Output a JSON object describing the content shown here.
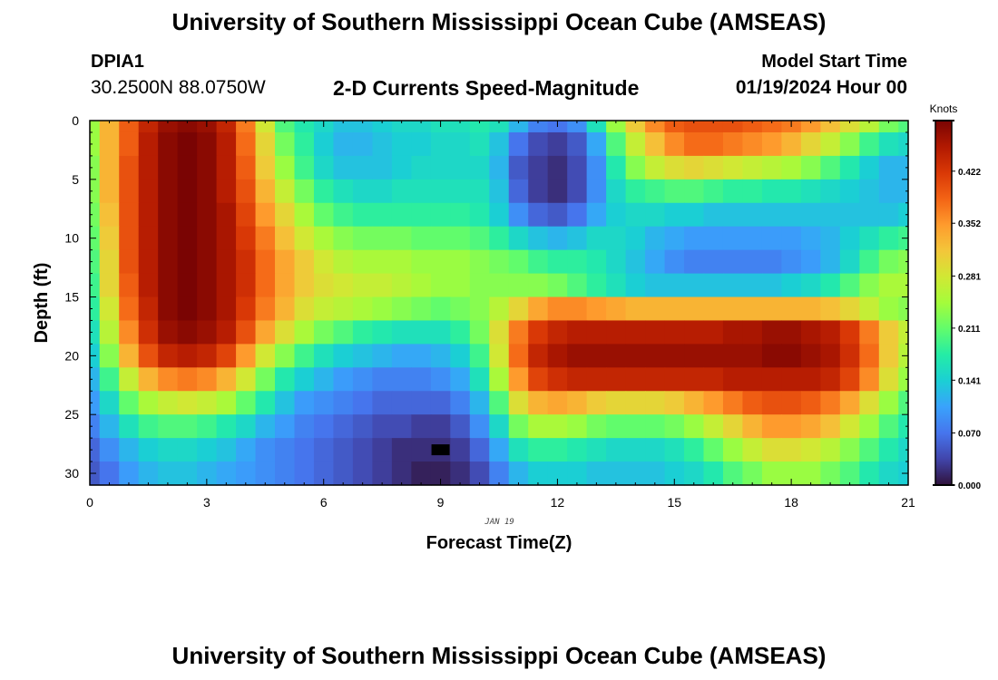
{
  "header": {
    "title": "University of Southern Mississippi Ocean Cube (AMSEAS)",
    "station": "DPIA1",
    "coords": "30.2500N  88.0750W",
    "subtitle": "2-D Currents Speed-Magnitude",
    "start_label": "Model Start Time",
    "start_value": "01/19/2024 Hour 00"
  },
  "footer": {
    "title": "University of Southern Mississippi Ocean Cube (AMSEAS)"
  },
  "chart_data": {
    "type": "heatmap",
    "title": "2-D Currents Speed-Magnitude",
    "xlabel": "Forecast Time(Z)",
    "ylabel": "Depth (ft)",
    "date_label": "JAN 19",
    "xlim": [
      0,
      21
    ],
    "ylim": [
      31,
      0
    ],
    "x_ticks": [
      0,
      3,
      6,
      9,
      12,
      15,
      18,
      21
    ],
    "y_ticks": [
      0,
      5,
      10,
      15,
      20,
      25,
      30
    ],
    "colorbar": {
      "unit": "Knots",
      "range": [
        0,
        0.49
      ],
      "ticks": [
        "0.000",
        "0.070",
        "0.141",
        "0.211",
        "0.281",
        "0.352",
        "0.422"
      ],
      "tick_values": [
        0,
        0.07,
        0.141,
        0.211,
        0.281,
        0.352,
        0.422
      ],
      "colormap": [
        "#30123b",
        "#4145ab",
        "#4675ed",
        "#39a2fc",
        "#1bcfd4",
        "#24eca6",
        "#61fc6c",
        "#a4fc3b",
        "#d1e834",
        "#f3c63a",
        "#fe9b2d",
        "#f36315",
        "#d93806",
        "#b11901",
        "#7a0403"
      ]
    },
    "time_hours": [
      0,
      0.5,
      1,
      1.5,
      2,
      2.5,
      3,
      3.5,
      4,
      4.5,
      5,
      5.5,
      6,
      6.5,
      7,
      7.5,
      8,
      8.5,
      9,
      9.5,
      10,
      10.5,
      11,
      11.5,
      12,
      12.5,
      13,
      13.5,
      14,
      14.5,
      15,
      15.5,
      16,
      16.5,
      17,
      17.5,
      18,
      18.5,
      19,
      19.5,
      20,
      20.5,
      21
    ],
    "depth_ft": [
      0,
      2,
      4,
      6,
      8,
      10,
      12,
      14,
      16,
      18,
      20,
      22,
      24,
      26,
      28,
      30
    ],
    "speed_knots": [
      [
        0.24,
        0.33,
        0.39,
        0.44,
        0.47,
        0.48,
        0.47,
        0.44,
        0.37,
        0.28,
        0.2,
        0.17,
        0.15,
        0.13,
        0.13,
        0.14,
        0.15,
        0.15,
        0.16,
        0.16,
        0.17,
        0.16,
        0.12,
        0.08,
        0.07,
        0.09,
        0.16,
        0.24,
        0.31,
        0.36,
        0.39,
        0.4,
        0.4,
        0.4,
        0.39,
        0.38,
        0.37,
        0.35,
        0.32,
        0.29,
        0.26,
        0.22,
        0.2
      ],
      [
        0.24,
        0.33,
        0.39,
        0.45,
        0.48,
        0.49,
        0.48,
        0.45,
        0.38,
        0.3,
        0.22,
        0.18,
        0.14,
        0.12,
        0.12,
        0.13,
        0.14,
        0.14,
        0.15,
        0.15,
        0.16,
        0.13,
        0.07,
        0.04,
        0.03,
        0.05,
        0.11,
        0.2,
        0.27,
        0.32,
        0.36,
        0.38,
        0.38,
        0.37,
        0.36,
        0.35,
        0.33,
        0.3,
        0.27,
        0.23,
        0.19,
        0.16,
        0.15
      ],
      [
        0.23,
        0.33,
        0.4,
        0.45,
        0.48,
        0.49,
        0.48,
        0.45,
        0.39,
        0.31,
        0.24,
        0.19,
        0.15,
        0.13,
        0.13,
        0.13,
        0.14,
        0.15,
        0.15,
        0.15,
        0.15,
        0.12,
        0.05,
        0.03,
        0.02,
        0.04,
        0.09,
        0.17,
        0.23,
        0.27,
        0.29,
        0.3,
        0.29,
        0.28,
        0.27,
        0.26,
        0.25,
        0.23,
        0.2,
        0.17,
        0.14,
        0.12,
        0.12
      ],
      [
        0.23,
        0.33,
        0.4,
        0.45,
        0.48,
        0.49,
        0.48,
        0.45,
        0.4,
        0.33,
        0.27,
        0.22,
        0.18,
        0.16,
        0.15,
        0.15,
        0.16,
        0.16,
        0.16,
        0.16,
        0.16,
        0.13,
        0.06,
        0.03,
        0.02,
        0.04,
        0.09,
        0.15,
        0.18,
        0.19,
        0.2,
        0.2,
        0.19,
        0.18,
        0.18,
        0.17,
        0.17,
        0.16,
        0.15,
        0.14,
        0.13,
        0.12,
        0.12
      ],
      [
        0.22,
        0.32,
        0.4,
        0.45,
        0.48,
        0.49,
        0.48,
        0.46,
        0.41,
        0.35,
        0.3,
        0.25,
        0.21,
        0.19,
        0.18,
        0.18,
        0.18,
        0.18,
        0.18,
        0.18,
        0.17,
        0.14,
        0.09,
        0.06,
        0.05,
        0.07,
        0.11,
        0.14,
        0.15,
        0.15,
        0.14,
        0.14,
        0.13,
        0.13,
        0.13,
        0.13,
        0.13,
        0.13,
        0.13,
        0.13,
        0.13,
        0.13,
        0.14
      ],
      [
        0.21,
        0.31,
        0.4,
        0.45,
        0.48,
        0.49,
        0.48,
        0.46,
        0.42,
        0.37,
        0.32,
        0.28,
        0.25,
        0.23,
        0.22,
        0.22,
        0.22,
        0.21,
        0.21,
        0.21,
        0.2,
        0.18,
        0.15,
        0.13,
        0.12,
        0.13,
        0.15,
        0.15,
        0.14,
        0.12,
        0.11,
        0.1,
        0.1,
        0.1,
        0.1,
        0.1,
        0.1,
        0.11,
        0.12,
        0.14,
        0.16,
        0.18,
        0.19
      ],
      [
        0.2,
        0.3,
        0.4,
        0.45,
        0.48,
        0.49,
        0.48,
        0.46,
        0.43,
        0.38,
        0.34,
        0.31,
        0.28,
        0.26,
        0.25,
        0.25,
        0.25,
        0.24,
        0.24,
        0.24,
        0.23,
        0.22,
        0.21,
        0.19,
        0.18,
        0.18,
        0.17,
        0.15,
        0.13,
        0.11,
        0.09,
        0.08,
        0.08,
        0.08,
        0.08,
        0.08,
        0.09,
        0.1,
        0.12,
        0.15,
        0.19,
        0.22,
        0.23
      ],
      [
        0.19,
        0.3,
        0.39,
        0.45,
        0.48,
        0.49,
        0.48,
        0.46,
        0.43,
        0.38,
        0.34,
        0.31,
        0.29,
        0.28,
        0.27,
        0.27,
        0.26,
        0.25,
        0.24,
        0.24,
        0.23,
        0.23,
        0.23,
        0.23,
        0.22,
        0.2,
        0.18,
        0.16,
        0.14,
        0.13,
        0.13,
        0.13,
        0.13,
        0.13,
        0.13,
        0.13,
        0.14,
        0.15,
        0.17,
        0.2,
        0.23,
        0.25,
        0.25
      ],
      [
        0.18,
        0.28,
        0.38,
        0.44,
        0.48,
        0.49,
        0.48,
        0.46,
        0.42,
        0.37,
        0.33,
        0.29,
        0.27,
        0.26,
        0.25,
        0.24,
        0.23,
        0.22,
        0.21,
        0.22,
        0.23,
        0.26,
        0.3,
        0.34,
        0.36,
        0.36,
        0.35,
        0.34,
        0.33,
        0.33,
        0.33,
        0.33,
        0.33,
        0.33,
        0.33,
        0.33,
        0.33,
        0.33,
        0.32,
        0.3,
        0.27,
        0.24,
        0.23
      ],
      [
        0.16,
        0.26,
        0.36,
        0.43,
        0.47,
        0.48,
        0.47,
        0.45,
        0.4,
        0.34,
        0.29,
        0.25,
        0.22,
        0.2,
        0.18,
        0.17,
        0.16,
        0.16,
        0.16,
        0.18,
        0.22,
        0.29,
        0.37,
        0.42,
        0.44,
        0.45,
        0.45,
        0.45,
        0.45,
        0.45,
        0.45,
        0.45,
        0.45,
        0.46,
        0.46,
        0.47,
        0.47,
        0.46,
        0.45,
        0.42,
        0.37,
        0.31,
        0.27
      ],
      [
        0.14,
        0.23,
        0.33,
        0.4,
        0.44,
        0.45,
        0.44,
        0.41,
        0.35,
        0.28,
        0.23,
        0.19,
        0.16,
        0.14,
        0.13,
        0.12,
        0.11,
        0.11,
        0.12,
        0.14,
        0.19,
        0.28,
        0.38,
        0.44,
        0.46,
        0.47,
        0.47,
        0.47,
        0.47,
        0.47,
        0.47,
        0.47,
        0.47,
        0.47,
        0.47,
        0.48,
        0.48,
        0.47,
        0.46,
        0.43,
        0.38,
        0.31,
        0.26
      ],
      [
        0.12,
        0.19,
        0.27,
        0.33,
        0.36,
        0.37,
        0.36,
        0.33,
        0.28,
        0.22,
        0.17,
        0.14,
        0.12,
        0.1,
        0.09,
        0.08,
        0.08,
        0.08,
        0.09,
        0.11,
        0.16,
        0.25,
        0.35,
        0.41,
        0.43,
        0.44,
        0.44,
        0.44,
        0.44,
        0.44,
        0.44,
        0.44,
        0.44,
        0.45,
        0.45,
        0.45,
        0.45,
        0.45,
        0.44,
        0.41,
        0.36,
        0.29,
        0.24
      ],
      [
        0.1,
        0.15,
        0.21,
        0.25,
        0.27,
        0.28,
        0.27,
        0.25,
        0.21,
        0.17,
        0.13,
        0.1,
        0.09,
        0.08,
        0.07,
        0.06,
        0.06,
        0.06,
        0.06,
        0.08,
        0.12,
        0.2,
        0.29,
        0.33,
        0.34,
        0.33,
        0.31,
        0.3,
        0.3,
        0.3,
        0.31,
        0.33,
        0.35,
        0.37,
        0.39,
        0.4,
        0.4,
        0.39,
        0.37,
        0.34,
        0.29,
        0.24,
        0.2
      ],
      [
        0.08,
        0.12,
        0.16,
        0.19,
        0.2,
        0.2,
        0.19,
        0.17,
        0.15,
        0.12,
        0.1,
        0.08,
        0.07,
        0.06,
        0.05,
        0.04,
        0.04,
        0.03,
        0.03,
        0.05,
        0.09,
        0.15,
        0.22,
        0.25,
        0.25,
        0.24,
        0.22,
        0.21,
        0.21,
        0.21,
        0.22,
        0.24,
        0.27,
        0.3,
        0.33,
        0.35,
        0.35,
        0.34,
        0.32,
        0.28,
        0.24,
        0.2,
        0.17
      ],
      [
        0.06,
        0.09,
        0.12,
        0.14,
        0.15,
        0.15,
        0.14,
        0.13,
        0.11,
        0.09,
        0.08,
        0.07,
        0.06,
        0.05,
        0.04,
        0.03,
        0.02,
        0.02,
        0.02,
        0.03,
        0.06,
        0.11,
        0.16,
        0.18,
        0.18,
        0.17,
        0.16,
        0.15,
        0.15,
        0.15,
        0.16,
        0.18,
        0.21,
        0.24,
        0.27,
        0.29,
        0.29,
        0.28,
        0.26,
        0.23,
        0.2,
        0.17,
        0.15
      ],
      [
        0.05,
        0.07,
        0.1,
        0.12,
        0.13,
        0.13,
        0.12,
        0.11,
        0.1,
        0.09,
        0.08,
        0.07,
        0.06,
        0.05,
        0.04,
        0.03,
        0.02,
        0.01,
        0.01,
        0.02,
        0.04,
        0.08,
        0.12,
        0.14,
        0.14,
        0.14,
        0.13,
        0.13,
        0.13,
        0.13,
        0.14,
        0.15,
        0.17,
        0.2,
        0.22,
        0.24,
        0.24,
        0.24,
        0.22,
        0.2,
        0.17,
        0.15,
        0.14
      ]
    ],
    "marker": {
      "label": "missing-cell",
      "time_hours": 9,
      "depth_ft": 28
    }
  }
}
